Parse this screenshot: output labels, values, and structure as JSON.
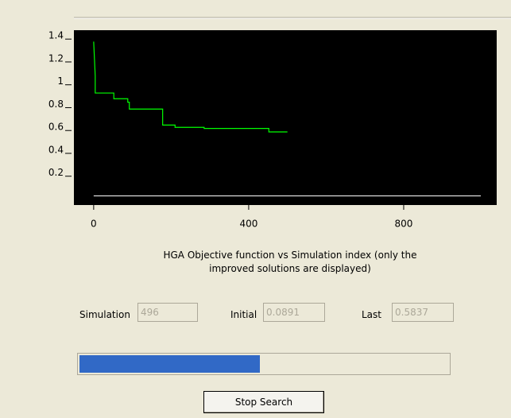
{
  "chart_data": {
    "type": "line",
    "x": [
      0,
      2,
      4,
      4,
      52,
      52,
      88,
      88,
      92,
      92,
      178,
      178,
      210,
      210,
      285,
      285,
      452,
      452,
      500
    ],
    "series": [
      {
        "color": "#00ff00",
        "values": [
          1.35,
          1.2,
          1.05,
          0.9,
          0.9,
          0.85,
          0.85,
          0.82,
          0.82,
          0.76,
          0.76,
          0.62,
          0.62,
          0.6,
          0.6,
          0.59,
          0.59,
          0.56,
          0.56
        ]
      }
    ],
    "xlim": [
      -51,
      1040
    ],
    "ylim": [
      -0.08,
      1.45
    ],
    "xticks": [
      0,
      400,
      800
    ],
    "yticks": [
      0.2,
      0.4,
      0.6,
      0.8,
      1,
      1.2,
      1.4
    ],
    "background": "#000000"
  },
  "caption": [
    "HGA Objective function vs Simulation index  (only the",
    "improved solutions are displayed)"
  ],
  "fields": [
    {
      "label": "Simulation",
      "value": "496"
    },
    {
      "label": "Initial",
      "value": "0.0891"
    },
    {
      "label": "Last",
      "value": "0.5837"
    }
  ],
  "progress": {
    "value": 496,
    "max": 1000,
    "color": "#3169c6"
  },
  "button": "Stop Search"
}
